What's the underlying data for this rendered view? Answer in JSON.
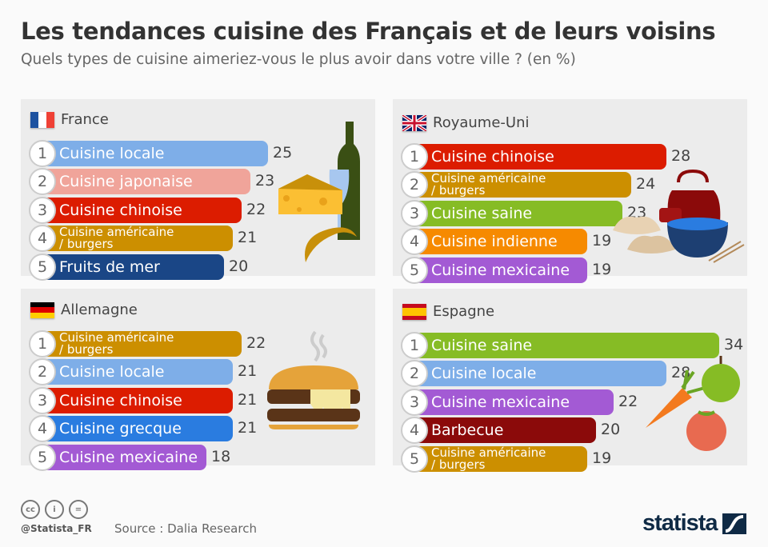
{
  "title": "Les tendances cuisine des Français et de leurs voisins",
  "subtitle": "Quels types de cuisine aimeriez-vous le plus avoir dans votre ville ? (en %)",
  "footer": {
    "handle": "@Statista_FR",
    "source": "Source : Dalia Research",
    "logo": "statista",
    "license_icons": [
      "cc-icon",
      "by-icon",
      "nd-icon"
    ]
  },
  "chart_data": [
    {
      "type": "bar",
      "title": "France",
      "flag": "france-flag",
      "categories": [
        "Cuisine locale",
        "Cuisine japonaise",
        "Cuisine chinoise",
        "Cuisine américaine / burgers",
        "Fruits de mer"
      ],
      "values": [
        25,
        23,
        22,
        21,
        20
      ],
      "colors": [
        "#7eaee8",
        "#f0a49a",
        "#dc1c00",
        "#cc8f00",
        "#1a4686"
      ],
      "illustration": "wine-cheese-croissant"
    },
    {
      "type": "bar",
      "title": "Royaume-Uni",
      "flag": "uk-flag",
      "categories": [
        "Cuisine chinoise",
        "Cuisine américaine / burgers",
        "Cuisine saine",
        "Cuisine indienne",
        "Cuisine mexicaine"
      ],
      "values": [
        28,
        24,
        23,
        19,
        19
      ],
      "colors": [
        "#dc1c00",
        "#cc8f00",
        "#86bc25",
        "#f68a00",
        "#a35ad4"
      ],
      "illustration": "teapot-dumplings-bowl"
    },
    {
      "type": "bar",
      "title": "Allemagne",
      "flag": "germany-flag",
      "categories": [
        "Cuisine américaine / burgers",
        "Cuisine locale",
        "Cuisine chinoise",
        "Cuisine grecque",
        "Cuisine mexicaine"
      ],
      "values": [
        22,
        21,
        21,
        21,
        18
      ],
      "colors": [
        "#cc8f00",
        "#7eaee8",
        "#dc1c00",
        "#2a7ce0",
        "#a35ad4"
      ],
      "illustration": "burger"
    },
    {
      "type": "bar",
      "title": "Espagne",
      "flag": "spain-flag",
      "categories": [
        "Cuisine saine",
        "Cuisine locale",
        "Cuisine mexicaine",
        "Barbecue",
        "Cuisine américaine / burgers"
      ],
      "values": [
        34,
        28,
        22,
        20,
        19
      ],
      "colors": [
        "#86bc25",
        "#7eaee8",
        "#a35ad4",
        "#8b0a0a",
        "#cc8f00"
      ],
      "illustration": "carrot-apple-tomato"
    }
  ]
}
